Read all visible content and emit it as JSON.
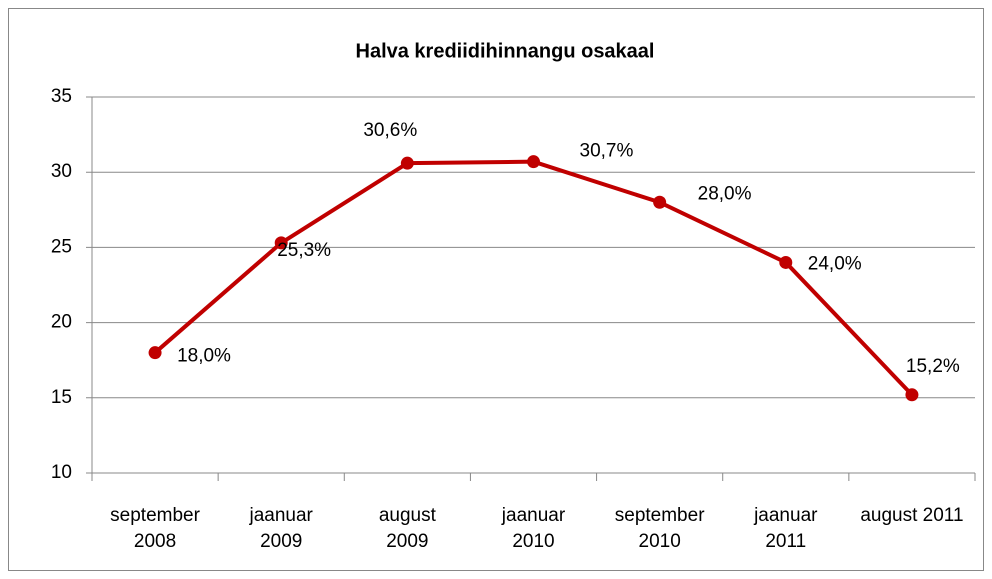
{
  "chart_data": {
    "type": "line",
    "title": "Halva krediidihinnangu osakaal",
    "categories": [
      "september 2008",
      "jaanuar 2009",
      "august 2009",
      "jaanuar 2010",
      "september 2010",
      "jaanuar 2011",
      "august 2011"
    ],
    "series": [
      {
        "name": "Halva krediidihinnangu osakaal",
        "color": "#c00000",
        "values": [
          18.0,
          25.3,
          30.6,
          30.7,
          28.0,
          24.0,
          15.2
        ],
        "value_labels": [
          "18,0%",
          "25,3%",
          "30,6%",
          "30,7%",
          "28,0%",
          "24,0%",
          "15,2%"
        ]
      }
    ],
    "ylim": [
      10,
      35
    ],
    "yticks": [
      10,
      15,
      20,
      25,
      30,
      35
    ],
    "grid": true
  }
}
